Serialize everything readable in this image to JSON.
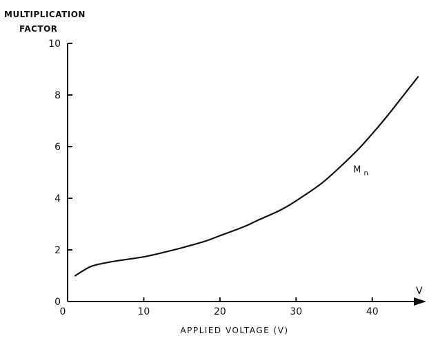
{
  "chart_data": {
    "type": "line",
    "title": "MULTIPLICATION FACTOR",
    "title_lines": [
      "MULTIPLICATION",
      "FACTOR"
    ],
    "xlabel": "APPLIED VOLTAGE (V)",
    "ylabel": "",
    "axis_arrow_label": "V",
    "xlim": [
      0,
      46
    ],
    "ylim": [
      0,
      10
    ],
    "xticks": [
      0,
      10,
      20,
      30,
      40
    ],
    "xtick_labels": [
      "0",
      "10",
      "20",
      "30",
      "40"
    ],
    "yticks": [
      0,
      2,
      4,
      6,
      8,
      10
    ],
    "ytick_labels": [
      "0",
      "2",
      "4",
      "6",
      "8",
      "10"
    ],
    "grid": false,
    "series": [
      {
        "name": "Mn",
        "label_main": "M",
        "label_sub": "n",
        "x": [
          1,
          3,
          5,
          7,
          10,
          13,
          15,
          18,
          20,
          23,
          25,
          28,
          30,
          33,
          35,
          38,
          40,
          42,
          44,
          46
        ],
        "y": [
          1.0,
          1.35,
          1.5,
          1.6,
          1.73,
          1.93,
          2.08,
          2.33,
          2.55,
          2.88,
          3.15,
          3.55,
          3.9,
          4.5,
          5.0,
          5.85,
          6.5,
          7.2,
          7.95,
          8.7
        ]
      }
    ]
  }
}
